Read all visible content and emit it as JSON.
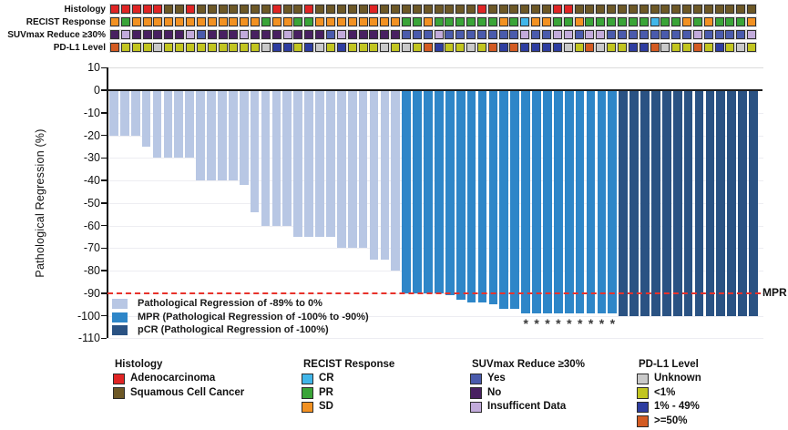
{
  "annotation_tracks": {
    "labels": [
      "Histology",
      "RECIST Response",
      "SUVmax Reduce ≥30%",
      "PD-L1 Level"
    ],
    "tracks": [
      {
        "name": "Histology",
        "codes": "AAAAASSASSSSSSSASSASSSSSASSSSSSSSSASSSSSSAASSSSSSSSSSSSSSSSS",
        "legend": {
          "A": {
            "label": "Adenocarcinoma",
            "color": "#e02424"
          },
          "S": {
            "label": "Squamous Cell Cancer",
            "color": "#6d5826"
          }
        }
      },
      {
        "name": "RECIST Response",
        "codes": "DPDDDDDDDDDDDDPDDPPDDDDDDDDPPDPPPPPPDPCDDPPDPPPPPPCPPDPDPPPD",
        "legend": {
          "C": {
            "label": "CR",
            "color": "#41b6e9"
          },
          "P": {
            "label": "PR",
            "color": "#3aa438"
          },
          "D": {
            "label": "SD",
            "color": "#f29122"
          }
        }
      },
      {
        "name": "SUVmax Reduce ≥30%",
        "codes": "NINNNNNIYNNNINNNINNNYINNNNNYYYIYYYYYYYIYYIIYIIYYYYYYYYIYYYYI",
        "legend": {
          "Y": {
            "label": "Yes",
            "color": "#4a5bac"
          },
          "N": {
            "label": "No",
            "color": "#482061"
          },
          "I": {
            "label": "Insufficent Data",
            "color": "#c2abdb"
          }
        }
      },
      {
        "name": "PD-L1 Level",
        "codes": "HLLLULLLLLLLLLUMMLMULMLLLULULHMLLULHMHMMMMULHULLMMHULLHLMLUL",
        "legend": {
          "U": {
            "label": "Unknown",
            "color": "#c9c9c9"
          },
          "L": {
            "label": "<1%",
            "color": "#c2c520"
          },
          "M": {
            "label": "1% - 49%",
            "color": "#2e3da0"
          },
          "H": {
            "label": ">=50%",
            "color": "#d35b22"
          }
        }
      }
    ]
  },
  "chart_data": {
    "type": "bar",
    "title": "",
    "xlabel": "",
    "ylabel": "Pathological Regression (%)",
    "ylim": [
      -110,
      10
    ],
    "yticks": [
      10,
      0,
      -10,
      -20,
      -30,
      -40,
      -50,
      -60,
      -70,
      -80,
      -90,
      -100,
      -110
    ],
    "grid": true,
    "n_patients": 60,
    "values": [
      -20,
      -20,
      -20,
      -25,
      -30,
      -30,
      -30,
      -30,
      -40,
      -40,
      -40,
      -40,
      -42,
      -54,
      -60,
      -60,
      -60,
      -65,
      -65,
      -65,
      -65,
      -70,
      -70,
      -70,
      -75,
      -75,
      -80,
      -90,
      -90,
      -90,
      -90,
      -91,
      -93,
      -94,
      -94,
      -95,
      -97,
      -97,
      -99,
      -99,
      -99,
      -99,
      -99,
      -99,
      -99,
      -99,
      -99,
      -100,
      -100,
      -100,
      -100,
      -100,
      -100,
      -100,
      -100,
      -100,
      -100,
      -100,
      -100,
      -100
    ],
    "segments": [
      {
        "name": "regression",
        "count": 27,
        "color": "#b8c7e4"
      },
      {
        "name": "mpr",
        "count": 20,
        "color": "#2e86c8"
      },
      {
        "name": "pcr",
        "count": 13,
        "color": "#2a5283"
      }
    ],
    "reference_line": {
      "y": -90,
      "label": "MPR",
      "color": "#e8322b",
      "style": "dashed"
    },
    "asterisk_bar_indices": [
      39,
      40,
      41,
      42,
      43,
      44,
      45,
      46,
      47
    ],
    "legend_position": "inside-bottom-left",
    "legend": [
      {
        "label": "Pathological Regression of -89% to 0%",
        "color": "#b8c7e4"
      },
      {
        "label": "MPR (Pathological Regression of -100% to -90%)",
        "color": "#2e86c8"
      },
      {
        "label": "pCR (Pathological Regression of -100%)",
        "color": "#2a5283"
      }
    ]
  },
  "bottom_legends": [
    {
      "title": "Histology",
      "items": [
        {
          "label": "Adenocarcinoma",
          "color": "#e02424"
        },
        {
          "label": "Squamous Cell Cancer",
          "color": "#6d5826"
        }
      ]
    },
    {
      "title": "RECIST Response",
      "items": [
        {
          "label": "CR",
          "color": "#41b6e9"
        },
        {
          "label": "PR",
          "color": "#3aa438"
        },
        {
          "label": "SD",
          "color": "#f29122"
        }
      ]
    },
    {
      "title": "SUVmax Reduce ≥30%",
      "items": [
        {
          "label": "Yes",
          "color": "#4a5bac"
        },
        {
          "label": "No",
          "color": "#482061"
        },
        {
          "label": "Insufficent Data",
          "color": "#c2abdb"
        }
      ]
    },
    {
      "title": "PD-L1 Level",
      "items": [
        {
          "label": "Unknown",
          "color": "#c9c9c9"
        },
        {
          "label": "<1%",
          "color": "#c2c520"
        },
        {
          "label": "1% - 49%",
          "color": "#2e3da0"
        },
        {
          "label": ">=50%",
          "color": "#d35b22"
        }
      ]
    }
  ]
}
